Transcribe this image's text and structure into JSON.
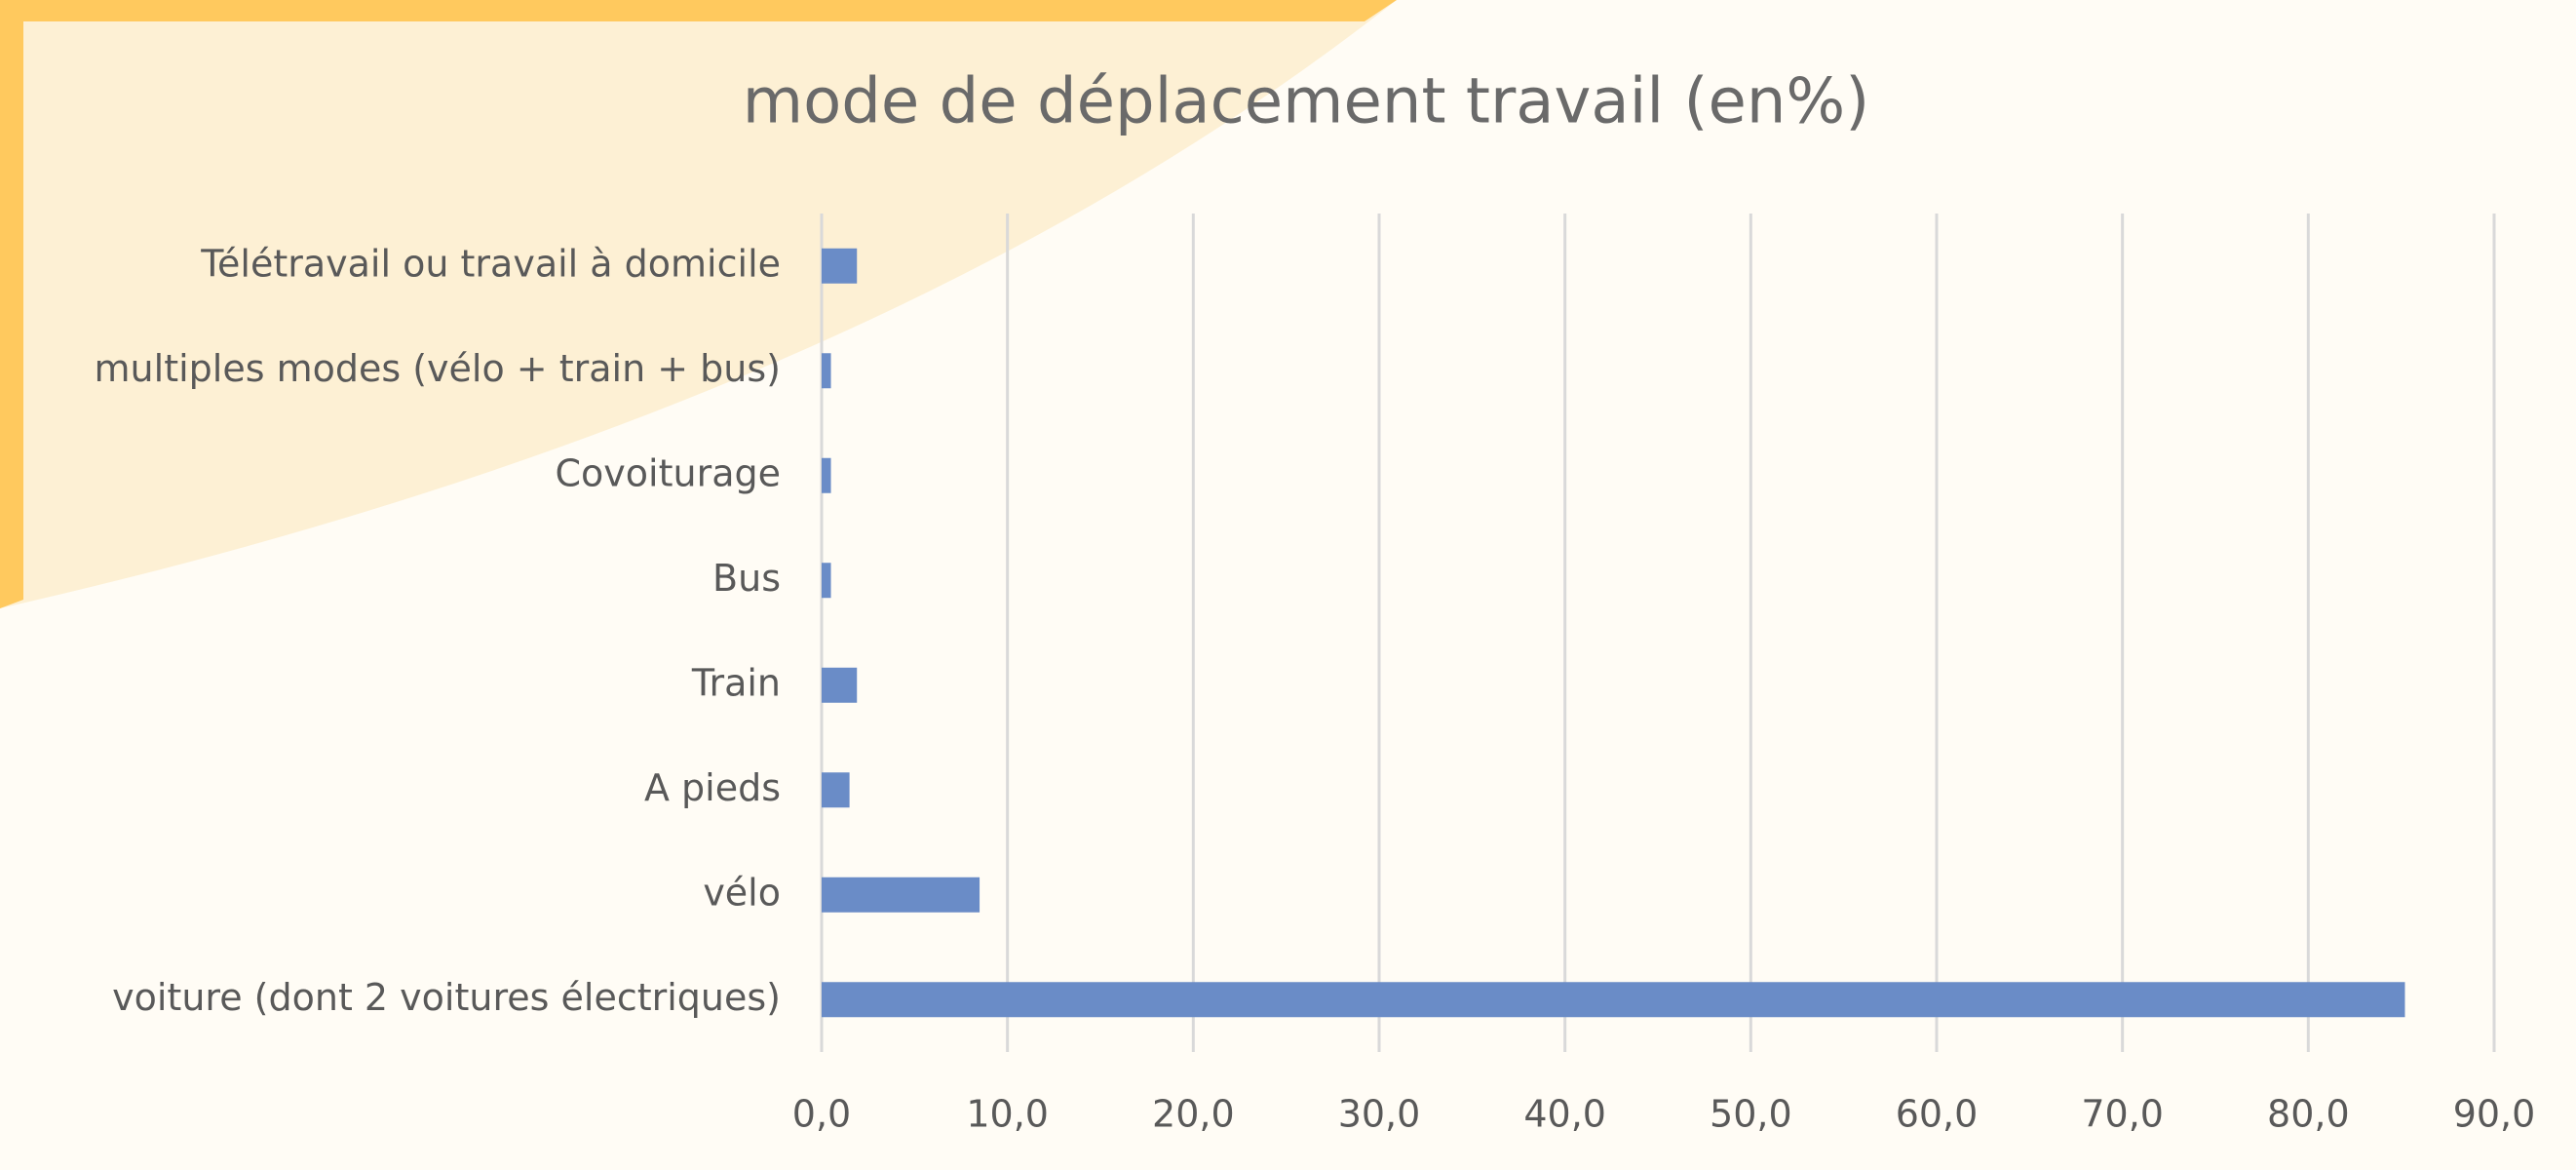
{
  "chart_data": {
    "type": "bar",
    "orientation": "horizontal",
    "title": "mode de déplacement travail (en%)",
    "categories": [
      "voiture (dont 2 voitures électriques)",
      "vélo",
      "A pieds",
      "Train",
      "Bus",
      "Covoiturage",
      "multiples modes (vélo + train + bus)",
      "Télétravail ou travail à domicile"
    ],
    "values": [
      85.2,
      8.5,
      1.5,
      1.9,
      0.5,
      0.5,
      0.5,
      1.9
    ],
    "color": "#6a8cc7",
    "xlim": [
      0,
      90
    ],
    "xticks": [
      {
        "value": 0,
        "label": "0,0"
      },
      {
        "value": 10,
        "label": "10,0"
      },
      {
        "value": 20,
        "label": "20,0"
      },
      {
        "value": 30,
        "label": "30,0"
      },
      {
        "value": 40,
        "label": "40,0"
      },
      {
        "value": 50,
        "label": "50,0"
      },
      {
        "value": 60,
        "label": "60,0"
      },
      {
        "value": 70,
        "label": "70,0"
      },
      {
        "value": 80,
        "label": "80,0"
      },
      {
        "value": 90,
        "label": "90,0"
      }
    ],
    "grid": true
  }
}
